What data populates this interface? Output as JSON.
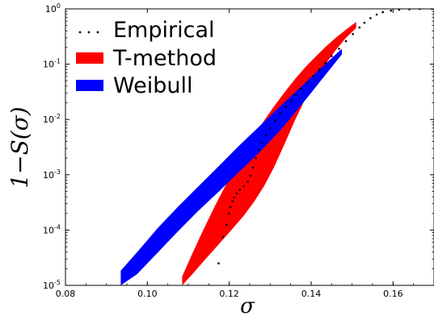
{
  "chart_data": {
    "type": "area",
    "xlabel": "σ",
    "ylabel": "1−S(σ)",
    "xlim": [
      0.08,
      0.17
    ],
    "ylim": [
      1e-05,
      1
    ],
    "yscale": "log",
    "xticks": [
      "0.08",
      "0.10",
      "0.12",
      "0.14",
      "0.16"
    ],
    "yticks": [
      {
        "base": "10",
        "exp": "-5"
      },
      {
        "base": "10",
        "exp": "-4"
      },
      {
        "base": "10",
        "exp": "-3"
      },
      {
        "base": "10",
        "exp": "-2"
      },
      {
        "base": "10",
        "exp": "-1"
      },
      {
        "base": "10",
        "exp": "0"
      }
    ],
    "legend_position": "top-left",
    "grid": false,
    "series": [
      {
        "name": "Empirical",
        "kind": "points",
        "color": "#000000",
        "x": [
          0.1174,
          0.1185,
          0.1193,
          0.1199,
          0.1203,
          0.1208,
          0.1212,
          0.1218,
          0.1226,
          0.1236,
          0.1245,
          0.1252,
          0.1258,
          0.1265,
          0.1272,
          0.128,
          0.129,
          0.13,
          0.1312,
          0.1325,
          0.1338,
          0.135,
          0.1362,
          0.1375,
          0.139,
          0.1405,
          0.142,
          0.1435,
          0.145,
          0.1468,
          0.1485,
          0.1502,
          0.1518,
          0.153,
          0.1545,
          0.156,
          0.1575,
          0.1595,
          0.1615,
          0.164,
          0.1665,
          0.1695
        ],
        "y": [
          2.5e-05,
          7.5e-05,
          0.000125,
          0.0002,
          0.00026,
          0.00033,
          0.00039,
          0.00046,
          0.00054,
          0.00062,
          0.00075,
          0.00095,
          0.00135,
          0.002,
          0.0028,
          0.0038,
          0.0052,
          0.007,
          0.0095,
          0.0128,
          0.017,
          0.022,
          0.028,
          0.036,
          0.047,
          0.061,
          0.08,
          0.105,
          0.14,
          0.19,
          0.26,
          0.35,
          0.46,
          0.56,
          0.68,
          0.79,
          0.87,
          0.93,
          0.965,
          0.985,
          0.995,
          1.0
        ]
      },
      {
        "name": "T-method",
        "kind": "band",
        "color": "#ff0000",
        "x": [
          0.1085,
          0.111,
          0.1135,
          0.116,
          0.1185,
          0.121,
          0.1235,
          0.126,
          0.1285,
          0.131,
          0.1335,
          0.136,
          0.1385,
          0.141,
          0.1435,
          0.146,
          0.1485,
          0.151
        ],
        "lower": [
          1e-05,
          1.6e-05,
          2.6e-05,
          4.2e-05,
          6.8e-05,
          0.00011,
          0.00018,
          0.00032,
          0.00062,
          0.0014,
          0.0036,
          0.0095,
          0.023,
          0.05,
          0.1,
          0.18,
          0.3,
          0.45
        ],
        "upper": [
          1.45e-05,
          3.8e-05,
          9.5e-05,
          0.00023,
          0.00053,
          0.00118,
          0.0025,
          0.005,
          0.0095,
          0.0175,
          0.031,
          0.053,
          0.087,
          0.135,
          0.205,
          0.3,
          0.42,
          0.58
        ]
      },
      {
        "name": "Weibull",
        "kind": "band",
        "color": "#0000ff",
        "x": [
          0.0935,
          0.0975,
          0.1025,
          0.1075,
          0.1125,
          0.1175,
          0.1225,
          0.1275,
          0.1325,
          0.1375,
          0.1425,
          0.1475
        ],
        "lower": [
          1e-05,
          1.6e-05,
          3.9e-05,
          9.5e-05,
          0.000225,
          0.0005,
          0.00115,
          0.0026,
          0.0064,
          0.0178,
          0.052,
          0.15
        ],
        "upper": [
          1.85e-05,
          4e-05,
          0.000108,
          0.000265,
          0.00062,
          0.00145,
          0.0034,
          0.0077,
          0.0175,
          0.039,
          0.087,
          0.19
        ]
      }
    ]
  }
}
